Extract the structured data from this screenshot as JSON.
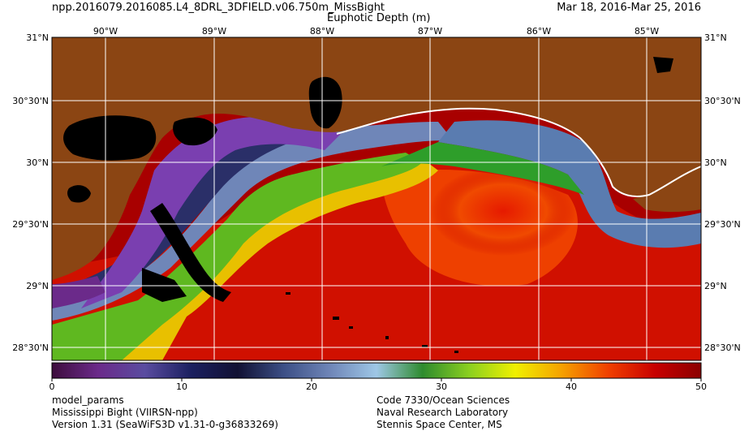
{
  "header": {
    "title": "npp.2016079.2016085.L4_8DRL_3DFIELD.v06.750m_MissBight",
    "date_range": "Mar 18, 2016-Mar 25, 2016",
    "product": "Euphotic Depth (m)"
  },
  "map": {
    "lon_labels": [
      "90°W",
      "89°W",
      "88°W",
      "87°W",
      "86°W",
      "85°W"
    ],
    "lat_labels": [
      "31°N",
      "30°30'N",
      "30°N",
      "29°30'N",
      "29°N",
      "28°30'N"
    ],
    "colors": {
      "land": "#8b4513",
      "no_data": "#000000",
      "grid": "#ffffff",
      "frame": "#000000"
    }
  },
  "colorbar": {
    "ticks": [
      "0",
      "10",
      "20",
      "30",
      "40",
      "50"
    ],
    "min": 0,
    "max": 50,
    "stops": [
      "#3d0d3d",
      "#6b2a8a",
      "#5a4ca0",
      "#1b2060",
      "#111133",
      "#3c4f86",
      "#6f86b8",
      "#9ec7e6",
      "#2e8b2e",
      "#8bd020",
      "#f0f000",
      "#f5a000",
      "#f04000",
      "#c80000",
      "#8b0000"
    ]
  },
  "footer": {
    "left": [
      "model_params",
      "Mississippi Bight (VIIRSN-npp)",
      "Version 1.31 (SeaWiFS3D v1.31-0-g36833269)"
    ],
    "right": [
      "Code 7330/Ocean Sciences",
      "Naval Research Laboratory",
      "Stennis Space Center, MS"
    ]
  }
}
